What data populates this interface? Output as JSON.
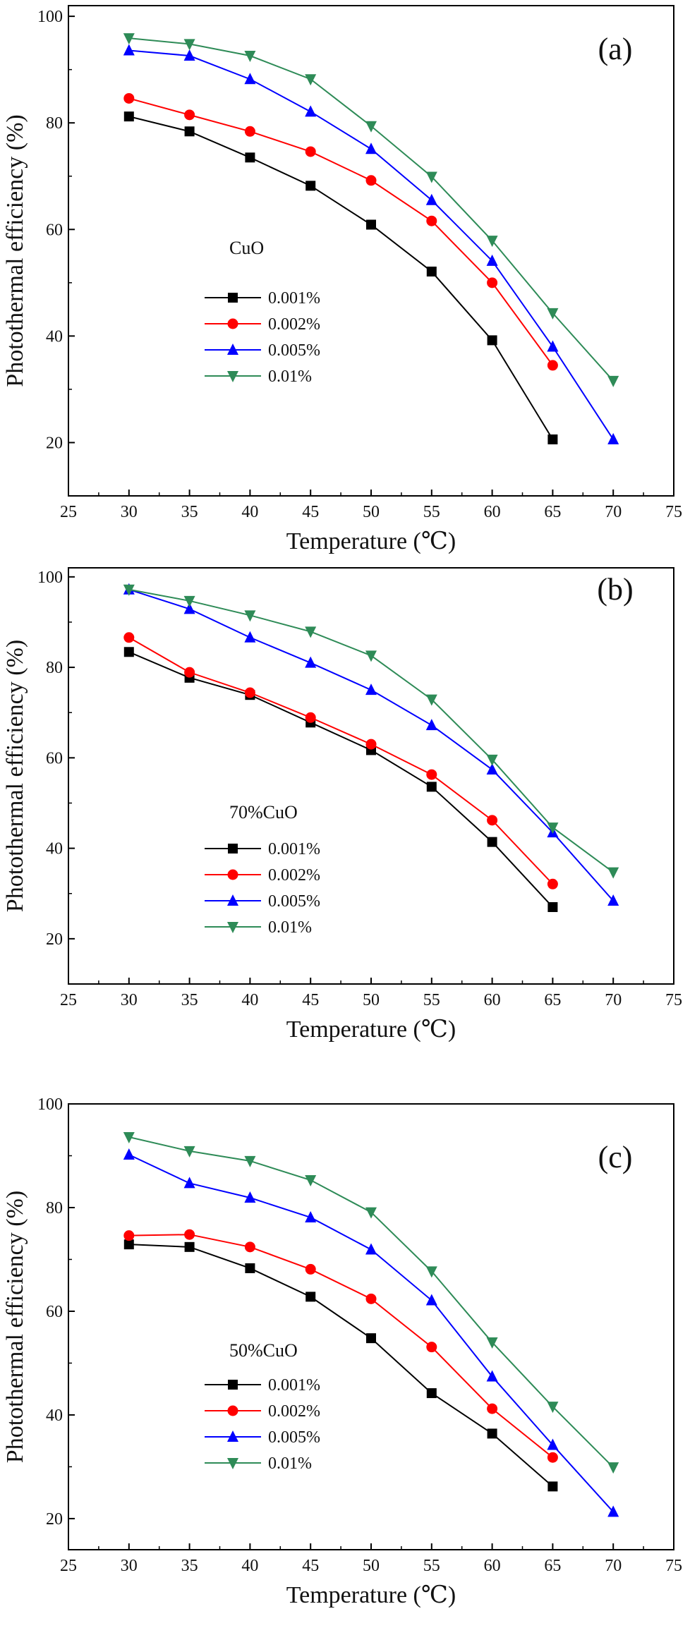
{
  "chart_data": [
    {
      "type": "line",
      "panel_label": "(a)",
      "xlabel": "Temperature (℃)",
      "ylabel": "Photothermal efficiency (%)",
      "xlim": [
        25,
        75
      ],
      "ylim": [
        10,
        102
      ],
      "xticks": [
        25,
        30,
        35,
        40,
        45,
        50,
        55,
        60,
        65,
        70,
        75
      ],
      "yticks": [
        20,
        40,
        60,
        80,
        100
      ],
      "legend_title": "CuO",
      "legend_position": "center-left",
      "series": [
        {
          "name": "0.001%",
          "color": "#000000",
          "marker": "square",
          "x": [
            30,
            35,
            40,
            45,
            50,
            55,
            60,
            65
          ],
          "y": [
            81.2,
            78.4,
            73.5,
            68.2,
            60.9,
            52.1,
            39.2,
            20.6
          ]
        },
        {
          "name": "0.002%",
          "color": "#ff0000",
          "marker": "circle",
          "x": [
            30,
            35,
            40,
            45,
            50,
            55,
            60,
            65
          ],
          "y": [
            84.6,
            81.5,
            78.4,
            74.6,
            69.2,
            61.6,
            50.0,
            34.5
          ]
        },
        {
          "name": "0.005%",
          "color": "#0000ff",
          "marker": "triangle-up",
          "x": [
            30,
            35,
            40,
            45,
            50,
            55,
            60,
            65,
            70
          ],
          "y": [
            93.6,
            92.6,
            88.2,
            82.1,
            75.1,
            65.5,
            54.1,
            38.0,
            20.6
          ]
        },
        {
          "name": "0.01%",
          "color": "#2e8b57",
          "marker": "triangle-down",
          "x": [
            30,
            35,
            40,
            45,
            50,
            55,
            60,
            65,
            70
          ],
          "y": [
            95.9,
            94.8,
            92.6,
            88.2,
            79.4,
            69.9,
            57.9,
            44.3,
            31.6
          ]
        }
      ]
    },
    {
      "type": "line",
      "panel_label": "(b)",
      "xlabel": "Temperature (℃)",
      "ylabel": "Photothermal efficiency (%)",
      "xlim": [
        25,
        75
      ],
      "ylim": [
        10,
        102
      ],
      "xticks": [
        25,
        30,
        35,
        40,
        45,
        50,
        55,
        60,
        65,
        70,
        75
      ],
      "yticks": [
        20,
        40,
        60,
        80,
        100
      ],
      "legend_title": "70%CuO",
      "legend_position": "center-left",
      "series": [
        {
          "name": "0.001%",
          "color": "#000000",
          "marker": "square",
          "x": [
            30,
            35,
            40,
            45,
            50,
            55,
            60,
            65
          ],
          "y": [
            83.4,
            77.7,
            73.9,
            67.8,
            61.7,
            53.6,
            41.4,
            27.0
          ]
        },
        {
          "name": "0.002%",
          "color": "#ff0000",
          "marker": "circle",
          "x": [
            30,
            35,
            40,
            45,
            50,
            55,
            60,
            65
          ],
          "y": [
            86.6,
            78.9,
            74.4,
            68.9,
            63.0,
            56.3,
            46.2,
            32.1
          ]
        },
        {
          "name": "0.005%",
          "color": "#0000ff",
          "marker": "triangle-up",
          "x": [
            30,
            35,
            40,
            45,
            50,
            55,
            60,
            65,
            70
          ],
          "y": [
            97.2,
            92.9,
            86.6,
            81.0,
            75.0,
            67.2,
            57.4,
            43.5,
            28.4
          ]
        },
        {
          "name": "0.01%",
          "color": "#2e8b57",
          "marker": "triangle-down",
          "x": [
            30,
            35,
            40,
            45,
            50,
            55,
            60,
            65,
            70
          ],
          "y": [
            97.2,
            94.7,
            91.5,
            87.9,
            82.6,
            72.9,
            59.6,
            44.6,
            34.7
          ]
        }
      ]
    },
    {
      "type": "line",
      "panel_label": "(c)",
      "xlabel": "Temperature (℃)",
      "ylabel": "Photothermal efficiency (%)",
      "xlim": [
        25,
        75
      ],
      "ylim": [
        14,
        100
      ],
      "xticks": [
        25,
        30,
        35,
        40,
        45,
        50,
        55,
        60,
        65,
        70,
        75
      ],
      "yticks": [
        20,
        40,
        60,
        80,
        100
      ],
      "legend_title": "50%CuO",
      "legend_position": "lower-left",
      "series": [
        {
          "name": "0.001%",
          "color": "#000000",
          "marker": "square",
          "x": [
            30,
            35,
            40,
            45,
            50,
            55,
            60,
            65
          ],
          "y": [
            72.9,
            72.4,
            68.3,
            62.8,
            54.8,
            44.2,
            36.4,
            26.2
          ]
        },
        {
          "name": "0.002%",
          "color": "#ff0000",
          "marker": "circle",
          "x": [
            30,
            35,
            40,
            45,
            50,
            55,
            60,
            65
          ],
          "y": [
            74.6,
            74.8,
            72.4,
            68.1,
            62.4,
            53.1,
            41.2,
            31.8
          ]
        },
        {
          "name": "0.005%",
          "color": "#0000ff",
          "marker": "triangle-up",
          "x": [
            30,
            35,
            40,
            45,
            50,
            55,
            60,
            65,
            70
          ],
          "y": [
            90.2,
            84.7,
            81.9,
            78.1,
            71.9,
            62.1,
            47.4,
            34.2,
            21.3
          ]
        },
        {
          "name": "0.01%",
          "color": "#2e8b57",
          "marker": "triangle-down",
          "x": [
            30,
            35,
            40,
            45,
            50,
            55,
            60,
            65,
            70
          ],
          "y": [
            93.6,
            90.9,
            89.0,
            85.3,
            79.1,
            67.7,
            54.0,
            41.6,
            29.9
          ]
        }
      ]
    }
  ]
}
